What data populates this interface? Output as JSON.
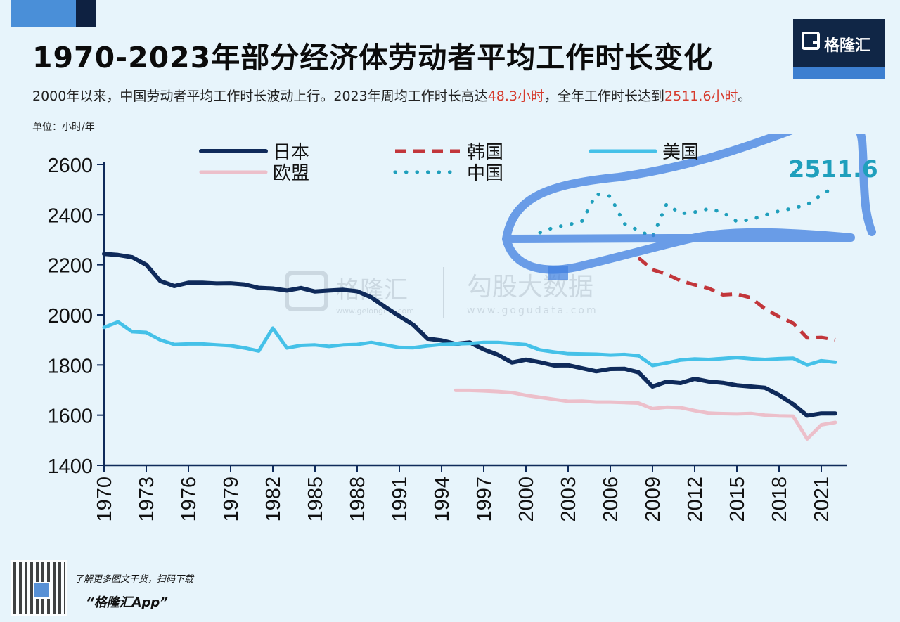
{
  "header": {
    "title": "1970-2023年部分经济体劳动者平均工作时长变化",
    "subtitle_pre": "2000年以来，中国劳动者平均工作时长波动上行。2023年周均工作时长高达",
    "subtitle_hl1": "48.3小时",
    "subtitle_mid": "，全年工作时长达到",
    "subtitle_hl2": "2511.6小时",
    "subtitle_post": "。",
    "unit": "单位：小时/年"
  },
  "logo": {
    "text": "格隆汇"
  },
  "watermark": {
    "text1": "格隆汇",
    "text1_sub": "www.gelonghui.com",
    "text2": "勾股大数据",
    "text2_sub": "www.gogudata.com"
  },
  "footer": {
    "line1": "了解更多图文干货，扫码下载",
    "line2": "“格隆汇App”"
  },
  "colors": {
    "japan": "#0f2a5a",
    "korea": "#c2363b",
    "usa": "#45c1e8",
    "eu": "#ecbfca",
    "china": "#1f9fbc",
    "annotation": "#1f9fbc",
    "highlight_brush": "#3f7fe0"
  },
  "chart_data": {
    "type": "line",
    "title": "1970-2023年部分经济体劳动者平均工作时长变化",
    "ylabel": "小时/年",
    "ylim": [
      1400,
      2600
    ],
    "yticks": [
      1400,
      1600,
      1800,
      2000,
      2200,
      2400,
      2600
    ],
    "xlim": [
      1970,
      2022
    ],
    "xticks": [
      "1970",
      "1973",
      "1976",
      "1979",
      "1982",
      "1985",
      "1988",
      "1991",
      "1994",
      "1997",
      "2000",
      "2003",
      "2006",
      "2009",
      "2012",
      "2015",
      "2018",
      "2021"
    ],
    "annotation": {
      "text": "2511.6",
      "x": 2022,
      "y": 2511.6
    },
    "series": [
      {
        "name": "日本",
        "style": "solid",
        "color_key": "japan",
        "x": [
          1970,
          1971,
          1972,
          1973,
          1974,
          1975,
          1976,
          1977,
          1978,
          1979,
          1980,
          1981,
          1982,
          1983,
          1984,
          1985,
          1986,
          1987,
          1988,
          1989,
          1990,
          1991,
          1992,
          1993,
          1994,
          1995,
          1996,
          1997,
          1998,
          1999,
          2000,
          2001,
          2002,
          2003,
          2004,
          2005,
          2006,
          2007,
          2008,
          2009,
          2010,
          2011,
          2012,
          2013,
          2014,
          2015,
          2016,
          2017,
          2018,
          2019,
          2020,
          2021,
          2022
        ],
        "y": [
          2243,
          2239,
          2230,
          2200,
          2135,
          2115,
          2128,
          2128,
          2125,
          2126,
          2121,
          2108,
          2105,
          2097,
          2107,
          2093,
          2097,
          2100,
          2094,
          2070,
          2031,
          1995,
          1960,
          1905,
          1898,
          1884,
          1890,
          1862,
          1841,
          1810,
          1821,
          1811,
          1798,
          1799,
          1787,
          1775,
          1784,
          1785,
          1771,
          1714,
          1733,
          1728,
          1745,
          1734,
          1729,
          1719,
          1714,
          1709,
          1680,
          1644,
          1598,
          1607,
          1607
        ]
      },
      {
        "name": "韩国",
        "style": "dashed",
        "color_key": "korea",
        "x": [
          2008,
          2009,
          2010,
          2011,
          2012,
          2013,
          2014,
          2015,
          2016,
          2017,
          2018,
          2019,
          2020,
          2021,
          2022
        ],
        "y": [
          2228,
          2180,
          2163,
          2136,
          2120,
          2106,
          2080,
          2083,
          2068,
          2024,
          1993,
          1967,
          1908,
          1910,
          1901
        ]
      },
      {
        "name": "美国",
        "style": "solid",
        "color_key": "usa",
        "x": [
          1970,
          1971,
          1972,
          1973,
          1974,
          1975,
          1976,
          1977,
          1978,
          1979,
          1980,
          1981,
          1982,
          1983,
          1984,
          1985,
          1986,
          1987,
          1988,
          1989,
          1990,
          1991,
          1992,
          1993,
          1994,
          1995,
          1996,
          1997,
          1998,
          1999,
          2000,
          2001,
          2002,
          2003,
          2004,
          2005,
          2006,
          2007,
          2008,
          2009,
          2010,
          2011,
          2012,
          2013,
          2014,
          2015,
          2016,
          2017,
          2018,
          2019,
          2020,
          2021,
          2022
        ],
        "y": [
          1950,
          1972,
          1933,
          1930,
          1900,
          1882,
          1884,
          1884,
          1880,
          1877,
          1868,
          1856,
          1947,
          1868,
          1878,
          1880,
          1874,
          1880,
          1882,
          1890,
          1880,
          1870,
          1869,
          1876,
          1882,
          1884,
          1886,
          1890,
          1890,
          1886,
          1881,
          1860,
          1852,
          1845,
          1844,
          1843,
          1840,
          1842,
          1837,
          1798,
          1808,
          1820,
          1824,
          1822,
          1826,
          1830,
          1825,
          1822,
          1825,
          1827,
          1800,
          1817,
          1811
        ]
      },
      {
        "name": "欧盟",
        "style": "solid",
        "color_key": "eu",
        "x": [
          1995,
          1996,
          1997,
          1998,
          1999,
          2000,
          2001,
          2002,
          2003,
          2004,
          2005,
          2006,
          2007,
          2008,
          2009,
          2010,
          2011,
          2012,
          2013,
          2014,
          2015,
          2016,
          2017,
          2018,
          2019,
          2020,
          2021,
          2022
        ],
        "y": [
          1699,
          1699,
          1697,
          1694,
          1690,
          1679,
          1671,
          1663,
          1655,
          1656,
          1652,
          1652,
          1650,
          1648,
          1626,
          1632,
          1630,
          1618,
          1608,
          1606,
          1605,
          1607,
          1600,
          1597,
          1596,
          1505,
          1561,
          1571
        ]
      },
      {
        "name": "中国",
        "style": "dotted",
        "color_key": "china",
        "x": [
          2001,
          2002,
          2003,
          2004,
          2005,
          2006,
          2007,
          2008,
          2009,
          2010,
          2011,
          2012,
          2013,
          2014,
          2015,
          2016,
          2017,
          2018,
          2019,
          2020,
          2021,
          2022
        ],
        "y": [
          2328,
          2349,
          2359,
          2375,
          2482,
          2473,
          2363,
          2337,
          2310,
          2442,
          2404,
          2410,
          2423,
          2409,
          2372,
          2380,
          2398,
          2414,
          2425,
          2440,
          2478,
          2512
        ]
      }
    ],
    "legend": {
      "position": "top",
      "order": [
        "日本",
        "韩国",
        "美国",
        "欧盟",
        "中国"
      ]
    }
  }
}
